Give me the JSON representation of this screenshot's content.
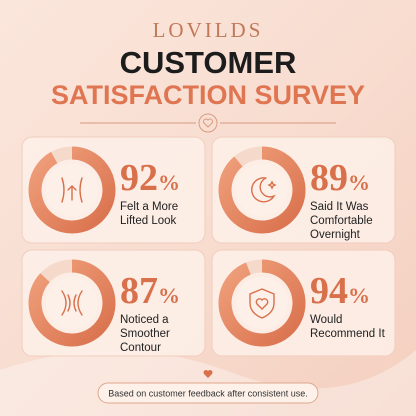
{
  "brand": "LOVILDS",
  "title": {
    "line1": "CUSTOMER",
    "line2": "SATISFACTION SURVEY"
  },
  "stats": [
    {
      "value": 92,
      "unit": "%",
      "lines": [
        "Felt a More",
        "Lifted Look"
      ]
    },
    {
      "value": 89,
      "unit": "%",
      "lines": [
        "Said It Was",
        "Comfortable",
        "Overnight"
      ]
    },
    {
      "value": 87,
      "unit": "%",
      "lines": [
        "Noticed a",
        "Smoother",
        "Contour"
      ]
    },
    {
      "value": 94,
      "unit": "%",
      "lines": [
        "Would",
        "Recommend It"
      ]
    }
  ],
  "footer": "Based on customer feedback after consistent use."
}
